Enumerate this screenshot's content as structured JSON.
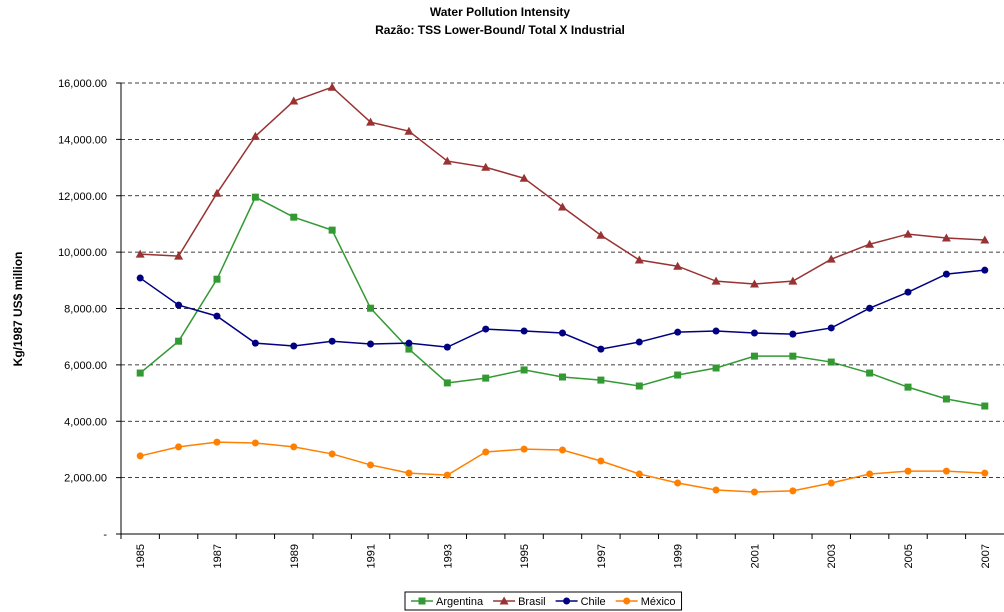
{
  "chart_data": {
    "type": "line",
    "title": "Water Pollution Intensity",
    "subtitle": "Razão: TSS Lower-Bound/ Total X Industrial",
    "y_label": "Kg/1987 US$ million",
    "categories": [
      "1985",
      null,
      "1987",
      null,
      "1989",
      null,
      "1991",
      null,
      "1993",
      null,
      "1995",
      null,
      "1997",
      null,
      "1999",
      null,
      "2001",
      null,
      "2003",
      null,
      "2005",
      null,
      "2007"
    ],
    "ylim": [
      0,
      16000
    ],
    "yticks": [
      {
        "value": 0,
        "label": "-"
      },
      {
        "value": 2000,
        "label": "2,000.00"
      },
      {
        "value": 4000,
        "label": "4,000.00"
      },
      {
        "value": 6000,
        "label": "6,000.00"
      },
      {
        "value": 8000,
        "label": "8,000.00"
      },
      {
        "value": 10000,
        "label": "10,000.00"
      },
      {
        "value": 12000,
        "label": "12,000.00"
      },
      {
        "value": 14000,
        "label": "14,000.00"
      },
      {
        "value": 16000,
        "label": "16,000.00"
      }
    ],
    "grid": true,
    "legend": "bottom",
    "series": [
      {
        "name": "Argentina",
        "color": "#339933",
        "marker": "square",
        "values": [
          5710,
          6840,
          9040,
          11950,
          11240,
          10780,
          8010,
          6560,
          5360,
          5530,
          5820,
          5570,
          5460,
          5250,
          5640,
          5890,
          6310,
          6310,
          6100,
          5710,
          5210,
          4790,
          4540
        ]
      },
      {
        "name": "Brasil",
        "color": "#993333",
        "marker": "triangle",
        "values": [
          9930,
          9860,
          12090,
          14110,
          15360,
          15850,
          14610,
          14290,
          13230,
          13010,
          12620,
          11600,
          10600,
          9720,
          9500,
          8970,
          8870,
          8970,
          9750,
          10280,
          10640,
          10500,
          10430
        ]
      },
      {
        "name": "Chile",
        "color": "#000080",
        "marker": "circle",
        "values": [
          9080,
          8120,
          7730,
          6770,
          6670,
          6840,
          6740,
          6770,
          6630,
          7270,
          7200,
          7130,
          6560,
          6810,
          7160,
          7200,
          7130,
          7090,
          7310,
          8010,
          8580,
          9220,
          9360
        ]
      },
      {
        "name": "México",
        "color": "#FF8000",
        "marker": "circle",
        "values": [
          2770,
          3090,
          3260,
          3230,
          3090,
          2840,
          2450,
          2160,
          2090,
          2910,
          3010,
          2980,
          2590,
          2130,
          1810,
          1560,
          1490,
          1530,
          1810,
          2130,
          2230,
          2230,
          2160
        ]
      }
    ]
  }
}
